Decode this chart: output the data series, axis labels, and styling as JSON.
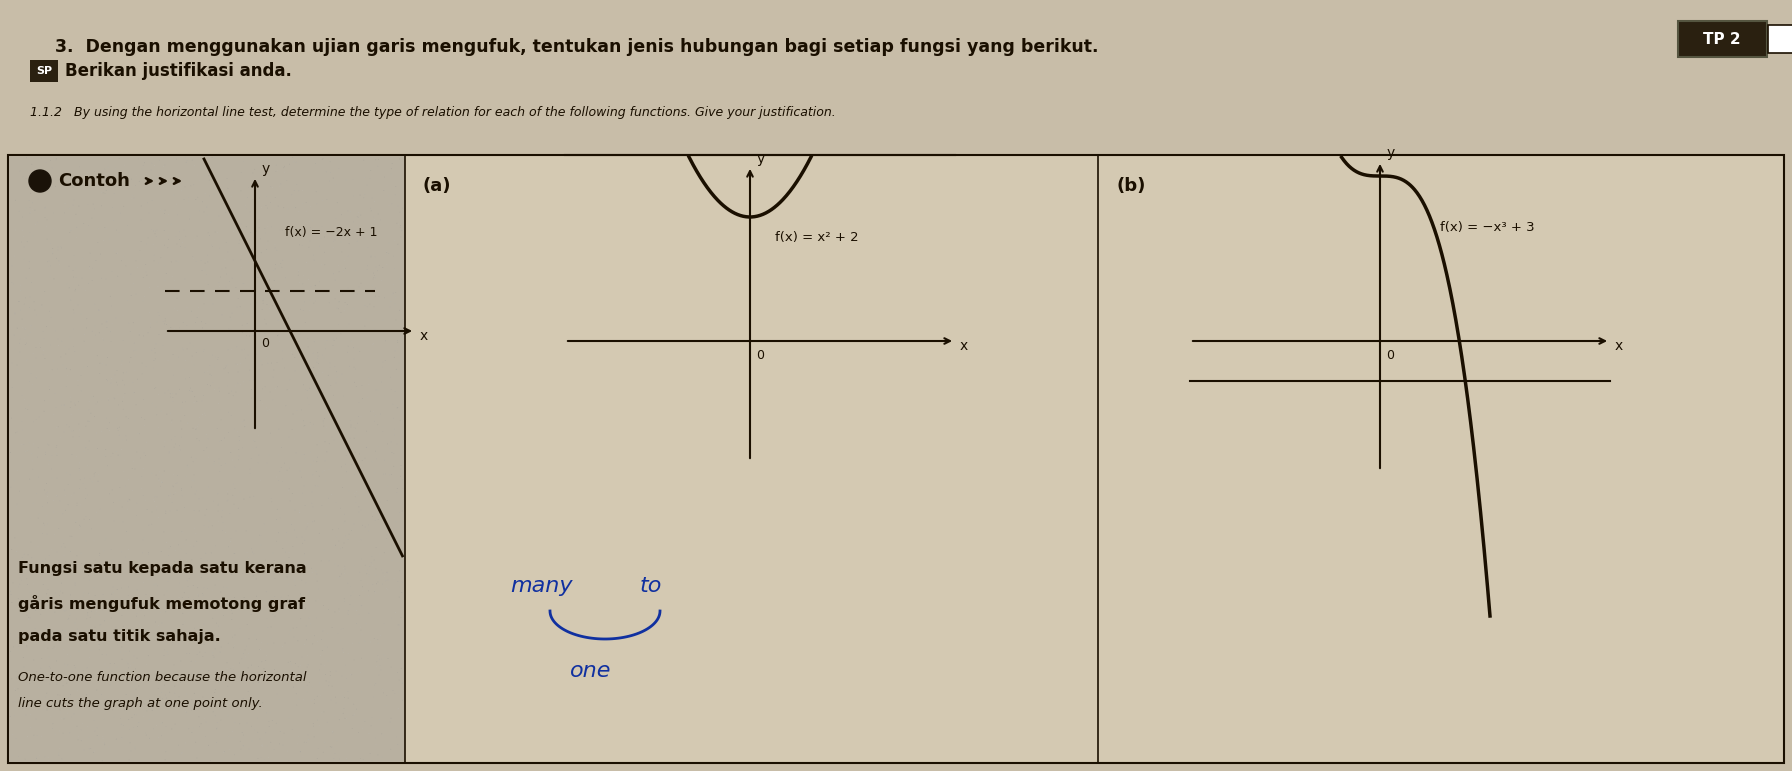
{
  "page_bg": "#c8bda8",
  "header_bg": "#c8bda8",
  "box_bg": "#d4c9b2",
  "contoh_bg": "#b8b0a0",
  "answer_bg": "#ccc4ae",
  "dark": "#1a0f00",
  "title": "3.  Dengan menggunakan ujian garis mengufuk, tentukan jenis hubungan bagi setiap fungsi yang berikut.",
  "tp2": "TP 2",
  "sp_line": "SP   Berikan justifikasi anda.",
  "sub_line": "1.1.2   By using the horizontal line test, determine the type of relation for each of the following functions. Give your justification.",
  "label_a": "(a)",
  "label_b": "(b)",
  "func_contoh": "f(x) = −2x + 1",
  "func_a": "f(x) = x² + 2",
  "func_b": "f(x) = −x³ + 3",
  "malay1": "Fungsi satu kepada satu kerana",
  "malay2": "gåris mengufuk memotong graf",
  "malay3": "pada satu titik sahaja.",
  "eng1": "One-to-one function because the horizontal",
  "eng2": "line cuts the graph at one point only.",
  "hw_many": "many",
  "hw_to": "to",
  "hw_one": "one"
}
